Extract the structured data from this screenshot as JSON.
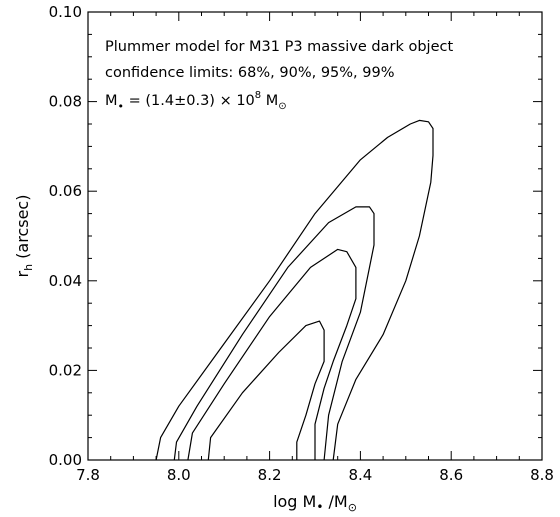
{
  "chart_data": {
    "type": "contour",
    "annotations": {
      "line1": "Plummer model for M31 P3 massive dark object",
      "line2": "confidence limits: 68%, 90%, 95%, 99%",
      "line3": {
        "prefix": "M",
        "sub": "•",
        "mid": " = (1.4±0.3) × 10",
        "sup": "8",
        "unit": " M",
        "unit_sub": "⊙"
      }
    },
    "xlabel": {
      "text": "log M",
      "sub": "•",
      "tail": " /M",
      "tail_sub": "⊙"
    },
    "ylabel": {
      "text": "r",
      "sub": "h",
      "tail": " (arcsec)"
    },
    "xlim": [
      7.8,
      8.8
    ],
    "ylim": [
      0.0,
      0.1
    ],
    "xticks": [
      "7.8",
      "8.0",
      "8.2",
      "8.4",
      "8.6",
      "8.8"
    ],
    "yticks": [
      "0.00",
      "0.02",
      "0.04",
      "0.06",
      "0.08",
      "0.10"
    ],
    "series": [
      {
        "level": "99%",
        "points": [
          [
            7.95,
            0.0
          ],
          [
            7.96,
            0.005
          ],
          [
            8.0,
            0.012
          ],
          [
            8.1,
            0.026
          ],
          [
            8.2,
            0.04
          ],
          [
            8.3,
            0.055
          ],
          [
            8.4,
            0.067
          ],
          [
            8.46,
            0.072
          ],
          [
            8.51,
            0.075
          ],
          [
            8.53,
            0.0758
          ],
          [
            8.55,
            0.0755
          ],
          [
            8.56,
            0.074
          ],
          [
            8.56,
            0.068
          ],
          [
            8.555,
            0.062
          ],
          [
            8.53,
            0.05
          ],
          [
            8.5,
            0.04
          ],
          [
            8.45,
            0.028
          ],
          [
            8.39,
            0.018
          ],
          [
            8.35,
            0.008
          ],
          [
            8.34,
            0.0
          ]
        ]
      },
      {
        "level": "95%",
        "points": [
          [
            7.99,
            0.0
          ],
          [
            7.995,
            0.004
          ],
          [
            8.04,
            0.012
          ],
          [
            8.14,
            0.028
          ],
          [
            8.24,
            0.043
          ],
          [
            8.33,
            0.053
          ],
          [
            8.39,
            0.0565
          ],
          [
            8.42,
            0.0565
          ],
          [
            8.43,
            0.055
          ],
          [
            8.43,
            0.048
          ],
          [
            8.42,
            0.043
          ],
          [
            8.4,
            0.033
          ],
          [
            8.36,
            0.022
          ],
          [
            8.33,
            0.01
          ],
          [
            8.32,
            0.0
          ]
        ]
      },
      {
        "level": "90%",
        "points": [
          [
            8.02,
            0.0
          ],
          [
            8.03,
            0.006
          ],
          [
            8.1,
            0.017
          ],
          [
            8.2,
            0.032
          ],
          [
            8.29,
            0.043
          ],
          [
            8.35,
            0.047
          ],
          [
            8.37,
            0.0465
          ],
          [
            8.39,
            0.043
          ],
          [
            8.39,
            0.036
          ],
          [
            8.37,
            0.03
          ],
          [
            8.34,
            0.022
          ],
          [
            8.32,
            0.016
          ],
          [
            8.3,
            0.008
          ],
          [
            8.3,
            0.0
          ]
        ]
      },
      {
        "level": "68%",
        "points": [
          [
            8.065,
            0.0
          ],
          [
            8.07,
            0.005
          ],
          [
            8.14,
            0.015
          ],
          [
            8.22,
            0.024
          ],
          [
            8.28,
            0.03
          ],
          [
            8.31,
            0.031
          ],
          [
            8.32,
            0.029
          ],
          [
            8.32,
            0.022
          ],
          [
            8.3,
            0.017
          ],
          [
            8.28,
            0.01
          ],
          [
            8.26,
            0.004
          ],
          [
            8.26,
            0.0
          ]
        ]
      }
    ]
  }
}
